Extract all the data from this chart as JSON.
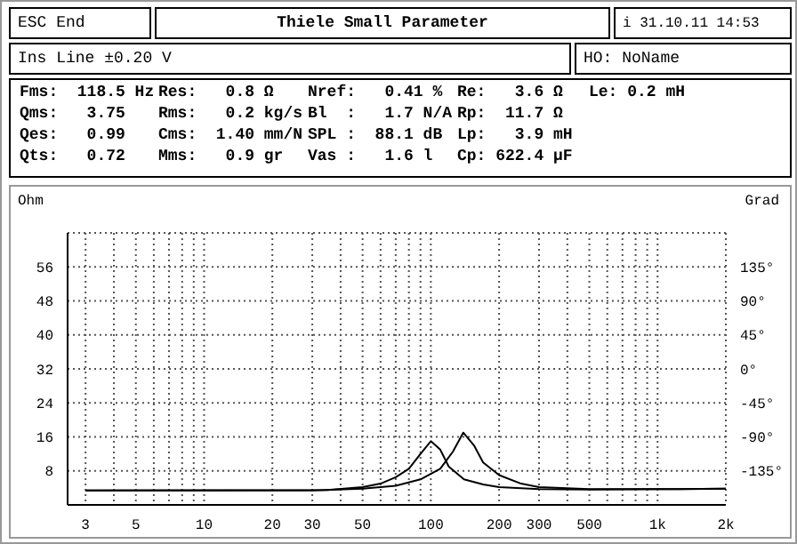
{
  "chart_data": {
    "type": "line",
    "title": "Thiele Small Parameter",
    "annotations": [
      "ESC End",
      "i 31.10.11 14:53",
      "Ins Line ±0.20 V",
      "HO: NoName",
      "Fms:  118.5 Hz",
      "Res:   0.8 Ω",
      "Nref:   0.41 %",
      "Re:   3.6 Ω",
      "Le: 0.2 mH",
      "Qms:   3.75",
      "Rms:   0.2 kg/s",
      "Bl  :   1.7 N/A",
      "Rp:  11.7 Ω",
      "Qes:   0.99",
      "Cms:  1.40 mm/N",
      "SPL :  88.1 dB",
      "Lp:   3.9 mH",
      "Qts:   0.72",
      "Mms:   0.9 gr",
      "Vas :   1.6 l",
      "Cp: 622.4 µF"
    ],
    "ylabel": "Ohm",
    "y2label": "Grad",
    "log": "x",
    "grid": true,
    "xlim": [
      2.5,
      2000
    ],
    "xticks": [
      3,
      {
        "value": 4,
        "label": null
      },
      5,
      {
        "value": 6,
        "label": null
      },
      {
        "value": 7,
        "label": null
      },
      {
        "value": 8,
        "label": null
      },
      {
        "value": 9,
        "label": null
      },
      10,
      20,
      30,
      {
        "value": 40,
        "label": null
      },
      50,
      {
        "value": 60,
        "label": null
      },
      {
        "value": 70,
        "label": null
      },
      {
        "value": 80,
        "label": null
      },
      {
        "value": 90,
        "label": null
      },
      100,
      200,
      300,
      {
        "value": 400,
        "label": null
      },
      500,
      {
        "value": 600,
        "label": null
      },
      {
        "value": 700,
        "label": null
      },
      {
        "value": 800,
        "label": null
      },
      {
        "value": 900,
        "label": null
      },
      {
        "value": 1000,
        "label": "1k"
      },
      {
        "value": 2000,
        "label": "2k"
      }
    ],
    "ylim": [
      0,
      64
    ],
    "yticks": [
      8,
      16,
      24,
      32,
      40,
      48,
      56
    ],
    "y2lim": [
      -180,
      180
    ],
    "y2ticks": [
      {
        "value": -135,
        "label": "-135°"
      },
      {
        "value": -90,
        "label": "-90°"
      },
      {
        "value": -45,
        "label": "-45°"
      },
      {
        "value": 0,
        "label": "0°"
      },
      {
        "value": 45,
        "label": "45°"
      },
      {
        "value": 90,
        "label": "90°"
      },
      {
        "value": 135,
        "label": "135°"
      }
    ],
    "series": [
      {
        "color": "#000000",
        "x": [
          3,
          35,
          50,
          60,
          70,
          80,
          90,
          100,
          110,
          120,
          140,
          170,
          200,
          300,
          500,
          1000,
          2000
        ],
        "values": [
          3.4,
          3.5,
          4.2,
          5,
          6.5,
          8.5,
          12,
          15,
          13,
          9,
          6,
          4.8,
          4.2,
          3.7,
          3.6,
          3.7,
          3.8
        ]
      },
      {
        "color": "#000000",
        "x": [
          3,
          30,
          50,
          70,
          90,
          110,
          125,
          139,
          155,
          170,
          200,
          250,
          300,
          500,
          1000,
          2000
        ],
        "values": [
          3.4,
          3.4,
          3.8,
          4.5,
          6,
          8.5,
          12.5,
          17,
          14,
          10,
          7,
          5,
          4.2,
          3.7,
          3.7,
          3.8
        ]
      }
    ]
  }
}
